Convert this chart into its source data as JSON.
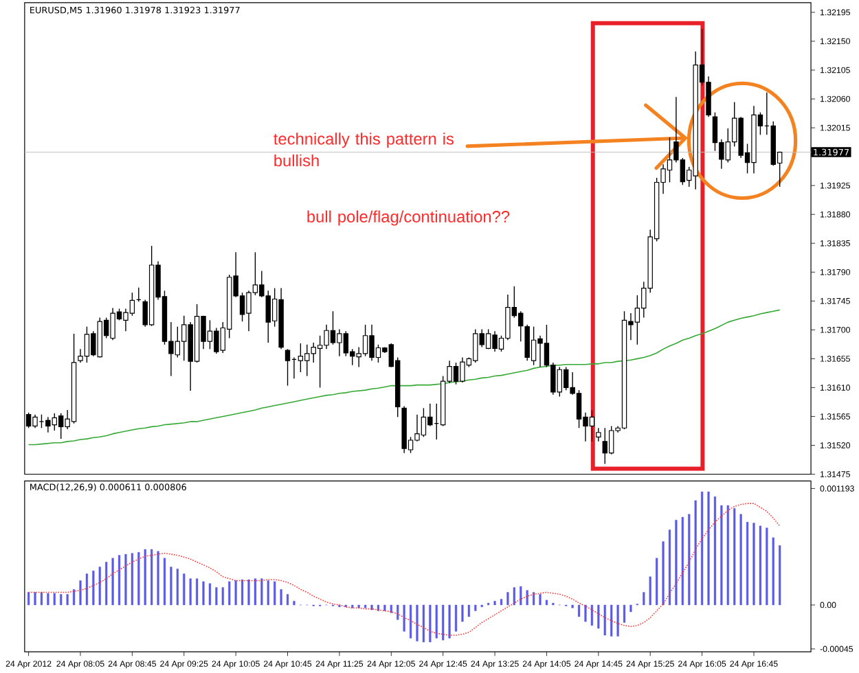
{
  "chart_data": [
    {
      "type": "candlestick",
      "title": "EURUSD,M5  1.31960 1.31978 1.31923 1.31977",
      "categories": [
        null,
        null,
        null,
        null,
        null,
        null,
        null,
        null,
        null,
        null,
        null,
        null,
        null,
        null,
        null,
        null,
        null,
        null,
        null,
        null,
        null,
        null,
        null,
        null,
        null,
        null,
        null,
        null,
        null,
        null,
        null,
        null,
        null,
        null,
        null,
        null,
        null,
        null,
        null,
        null,
        null,
        null,
        null,
        null,
        null,
        null,
        null,
        null,
        null,
        null,
        null,
        null,
        null,
        null,
        null,
        null,
        null,
        null,
        null,
        null,
        null,
        null,
        null,
        null,
        null,
        null,
        null,
        null,
        null,
        null,
        null,
        null,
        null,
        null,
        null,
        null,
        null,
        null,
        null,
        null,
        null,
        null,
        null,
        null,
        null,
        null,
        null,
        null,
        null,
        null,
        null,
        null,
        null,
        null,
        null,
        null,
        null,
        null,
        null,
        null,
        null,
        null,
        null,
        null,
        null,
        null,
        null,
        null,
        null,
        null,
        null,
        null,
        null,
        null,
        null,
        null,
        null
      ],
      "ohlc": [
        [
          1.31568,
          1.31571,
          1.31547,
          1.3155
        ],
        [
          1.3155,
          1.31568,
          1.31547,
          1.31564
        ],
        [
          1.31557,
          1.31568,
          1.31547,
          1.31557
        ],
        [
          1.31559,
          1.31564,
          1.3154,
          1.3155
        ],
        [
          1.31552,
          1.3157,
          1.31543,
          1.31563
        ],
        [
          1.31566,
          1.3157,
          1.3153,
          1.31549
        ],
        [
          1.31549,
          1.31575,
          1.31545,
          1.31561
        ],
        [
          1.31557,
          1.31694,
          1.31554,
          1.31649
        ],
        [
          1.31652,
          1.3167,
          1.31649,
          1.31659
        ],
        [
          1.31659,
          1.31705,
          1.31649,
          1.31693
        ],
        [
          1.31694,
          1.31698,
          1.31659,
          1.31661
        ],
        [
          1.31658,
          1.31719,
          1.31657,
          1.31713
        ],
        [
          1.31715,
          1.31719,
          1.31687,
          1.31691
        ],
        [
          1.31687,
          1.31734,
          1.31684,
          1.31726
        ],
        [
          1.31728,
          1.31733,
          1.31715,
          1.31717
        ],
        [
          1.31715,
          1.31733,
          1.31698,
          1.31727
        ],
        [
          1.31726,
          1.31758,
          1.31722,
          1.31746
        ],
        [
          1.31747,
          1.31766,
          1.31744,
          1.31747
        ],
        [
          1.31744,
          1.31747,
          1.31705,
          1.31708
        ],
        [
          1.31708,
          1.31831,
          1.31706,
          1.31801
        ],
        [
          1.31801,
          1.31807,
          1.31747,
          1.31751
        ],
        [
          1.31752,
          1.31761,
          1.31677,
          1.31682
        ],
        [
          1.31682,
          1.31712,
          1.31628,
          1.31663
        ],
        [
          1.31661,
          1.31705,
          1.31657,
          1.31682
        ],
        [
          1.31682,
          1.31722,
          1.31652,
          1.31708
        ],
        [
          1.31708,
          1.31712,
          1.31605,
          1.31651
        ],
        [
          1.31651,
          1.3174,
          1.31649,
          1.31721
        ],
        [
          1.31721,
          1.31722,
          1.3167,
          1.31682
        ],
        [
          1.31682,
          1.31715,
          1.3167,
          1.31698
        ],
        [
          1.31698,
          1.31703,
          1.31663,
          1.31666
        ],
        [
          1.31668,
          1.31712,
          1.31664,
          1.31703
        ],
        [
          1.31701,
          1.31786,
          1.31687,
          1.31782
        ],
        [
          1.31784,
          1.31821,
          1.31751,
          1.31753
        ],
        [
          1.31753,
          1.31758,
          1.31713,
          1.31724
        ],
        [
          1.31726,
          1.31761,
          1.31698,
          1.31758
        ],
        [
          1.31758,
          1.31821,
          1.31754,
          1.3177
        ],
        [
          1.3177,
          1.31792,
          1.31751,
          1.31753
        ],
        [
          1.31753,
          1.31761,
          1.3168,
          1.31712
        ],
        [
          1.31714,
          1.31765,
          1.31705,
          1.31748
        ],
        [
          1.31747,
          1.31765,
          1.3167,
          1.31673
        ],
        [
          1.31668,
          1.3167,
          1.31613,
          1.31652
        ],
        [
          1.31654,
          1.31657,
          1.31624,
          1.31654
        ],
        [
          1.31652,
          1.31679,
          1.31634,
          1.31659
        ],
        [
          1.31652,
          1.31677,
          1.31628,
          1.31663
        ],
        [
          1.31663,
          1.3168,
          1.31649,
          1.31673
        ],
        [
          1.31671,
          1.31691,
          1.3161,
          1.31676
        ],
        [
          1.31676,
          1.31708,
          1.3167,
          1.31699
        ],
        [
          1.31699,
          1.31729,
          1.31677,
          1.3168
        ],
        [
          1.3168,
          1.31701,
          1.31659,
          1.31694
        ],
        [
          1.31694,
          1.31698,
          1.31659,
          1.31664
        ],
        [
          1.31666,
          1.3167,
          1.31645,
          1.31659
        ],
        [
          1.31658,
          1.31673,
          1.31642,
          1.31663
        ],
        [
          1.31663,
          1.31708,
          1.31659,
          1.31691
        ],
        [
          1.31691,
          1.31708,
          1.31652,
          1.31657
        ],
        [
          1.31657,
          1.31677,
          1.31649,
          1.31672
        ],
        [
          1.31672,
          1.31673,
          1.31664,
          1.31666
        ],
        [
          1.31677,
          1.31679,
          1.31642,
          1.31643
        ],
        [
          1.31652,
          1.31657,
          1.31564,
          1.3158
        ],
        [
          1.31578,
          1.31581,
          1.31508,
          1.31515
        ],
        [
          1.31513,
          1.31533,
          1.31508,
          1.31528
        ],
        [
          1.31528,
          1.31568,
          1.31526,
          1.31538
        ],
        [
          1.31536,
          1.31578,
          1.31533,
          1.31564
        ],
        [
          1.31564,
          1.31585,
          1.3155,
          1.31552
        ],
        [
          1.31554,
          1.31585,
          1.31529,
          1.31554
        ],
        [
          1.31552,
          1.31628,
          1.3155,
          1.3162
        ],
        [
          1.3162,
          1.31652,
          1.31617,
          1.31643
        ],
        [
          1.31643,
          1.31649,
          1.31615,
          1.3162
        ],
        [
          1.3162,
          1.31657,
          1.31618,
          1.3165
        ],
        [
          1.31645,
          1.31657,
          1.31642,
          1.31655
        ],
        [
          1.31652,
          1.31701,
          1.31649,
          1.31694
        ],
        [
          1.31694,
          1.31701,
          1.31673,
          1.31677
        ],
        [
          1.31671,
          1.31701,
          1.3167,
          1.31694
        ],
        [
          1.31692,
          1.31698,
          1.31666,
          1.31671
        ],
        [
          1.3167,
          1.31691,
          1.31666,
          1.31687
        ],
        [
          1.31687,
          1.31755,
          1.31684,
          1.31735
        ],
        [
          1.31735,
          1.31768,
          1.31719,
          1.31722
        ],
        [
          1.31726,
          1.31729,
          1.31682,
          1.31706
        ],
        [
          1.31705,
          1.31708,
          1.31652,
          1.31657
        ],
        [
          1.31652,
          1.31705,
          1.31645,
          1.31684
        ],
        [
          1.31686,
          1.31691,
          1.31642,
          1.31679
        ],
        [
          1.31679,
          1.31708,
          1.31642,
          1.31645
        ],
        [
          1.31645,
          1.31649,
          1.31599,
          1.31603
        ],
        [
          1.31603,
          1.31642,
          1.31596,
          1.31638
        ],
        [
          1.31638,
          1.31642,
          1.31606,
          1.3161
        ],
        [
          1.3161,
          1.31634,
          1.31599,
          1.31601
        ],
        [
          1.31601,
          1.31606,
          1.31547,
          1.31561
        ],
        [
          1.31564,
          1.31571,
          1.31526,
          1.3155
        ],
        [
          1.3155,
          1.31575,
          1.31526,
          1.31564
        ],
        [
          1.31533,
          1.31547,
          1.31526,
          1.3154
        ],
        [
          1.31526,
          1.31547,
          1.31491,
          1.31508
        ],
        [
          1.31508,
          1.3155,
          1.31506,
          1.31543
        ],
        [
          1.31543,
          1.3155,
          1.3154,
          1.31547
        ],
        [
          1.31547,
          1.31729,
          1.31545,
          1.31715
        ],
        [
          1.31713,
          1.31726,
          1.31684,
          1.31708
        ],
        [
          1.31712,
          1.31754,
          1.31677,
          1.31734
        ],
        [
          1.31734,
          1.31775,
          1.31719,
          1.31765
        ],
        [
          1.31765,
          1.31856,
          1.31758,
          1.31845
        ],
        [
          1.31842,
          1.31937,
          1.31838,
          1.3193
        ],
        [
          1.3193,
          1.31958,
          1.31912,
          1.31951
        ],
        [
          1.31949,
          1.32,
          1.3193,
          1.31965
        ],
        [
          1.31993,
          1.32063,
          1.31961,
          1.31965
        ],
        [
          1.31965,
          1.31968,
          1.31926,
          1.31931
        ],
        [
          1.31933,
          1.31954,
          1.31923,
          1.31949
        ],
        [
          1.3194,
          1.32134,
          1.31919,
          1.32113
        ],
        [
          1.32113,
          1.32169,
          1.32081,
          1.32086
        ],
        [
          1.32086,
          1.32095,
          1.32032,
          1.32035
        ],
        [
          1.32032,
          1.32039,
          1.31979,
          1.31992
        ],
        [
          1.31992,
          1.31997,
          1.31951,
          1.31966
        ],
        [
          1.31965,
          1.32014,
          1.31961,
          1.31993
        ],
        [
          1.31993,
          1.32055,
          1.31986,
          1.3203
        ],
        [
          1.3203,
          1.32032,
          1.31968,
          1.31972
        ],
        [
          1.31976,
          1.3199,
          1.31944,
          1.31961
        ],
        [
          1.31961,
          1.32049,
          1.31944,
          1.32035
        ],
        [
          1.32035,
          1.32039,
          1.32004,
          1.32018
        ],
        [
          1.32018,
          1.3207,
          1.32004,
          1.32018
        ],
        [
          1.32018,
          1.32025,
          1.31956,
          1.31958
        ],
        [
          1.3196,
          1.31978,
          1.31923,
          1.31977
        ]
      ],
      "series": [
        {
          "type": "line",
          "color": "#33a833",
          "values": [
            1.31521,
            1.31521,
            1.31522,
            1.31523,
            1.31524,
            1.31524,
            1.31526,
            1.31527,
            1.31529,
            1.3153,
            1.31532,
            1.31533,
            1.31535,
            1.31538,
            1.3154,
            1.31542,
            1.31544,
            1.31546,
            1.31547,
            1.31549,
            1.3155,
            1.31552,
            1.31553,
            1.31554,
            1.31555,
            1.31557,
            1.31557,
            1.31559,
            1.31561,
            1.31563,
            1.31565,
            1.31567,
            1.31569,
            1.31571,
            1.31573,
            1.31575,
            1.31578,
            1.3158,
            1.31582,
            1.31584,
            1.31586,
            1.31588,
            1.3159,
            1.31592,
            1.31594,
            1.31596,
            1.31598,
            1.31599,
            1.31601,
            1.31602,
            1.31604,
            1.31605,
            1.31606,
            1.31608,
            1.31609,
            1.31611,
            1.31613,
            1.31613,
            1.31613,
            1.31613,
            1.31614,
            1.31614,
            1.31614,
            1.31615,
            1.31616,
            1.31618,
            1.31619,
            1.3162,
            1.31622,
            1.31623,
            1.31625,
            1.31626,
            1.31628,
            1.31629,
            1.31631,
            1.31633,
            1.31635,
            1.31637,
            1.3164,
            1.31642,
            1.31643,
            1.31645,
            1.31645,
            1.31646,
            1.31646,
            1.31646,
            1.31646,
            1.31647,
            1.31647,
            1.31649,
            1.31649,
            1.31651,
            1.31652,
            1.31653,
            1.31655,
            1.31657,
            1.3166,
            1.31664,
            1.3167,
            1.31675,
            1.31679,
            1.31684,
            1.31687,
            1.31691,
            1.31694,
            1.31698,
            1.31702,
            1.31707,
            1.31712,
            1.31715,
            1.31718,
            1.3172,
            1.31722,
            1.31725,
            1.31727,
            1.31729,
            1.31731
          ]
        }
      ],
      "ylim": [
        1.31475,
        1.3221
      ],
      "yticks": [
        1.32195,
        {
          "value": 1.3215,
          "label": "1.32150"
        },
        1.32105,
        {
          "value": 1.3206,
          "label": "1.32060"
        },
        1.32015,
        1.31925,
        {
          "value": 1.3188,
          "label": "1.31880"
        },
        1.31835,
        {
          "value": 1.3179,
          "label": "1.31790"
        },
        1.31745,
        {
          "value": 1.317,
          "label": "1.31700"
        },
        1.31655,
        {
          "value": 1.3161,
          "label": "1.31610"
        },
        1.31565,
        {
          "value": 1.3152,
          "label": "1.31520"
        },
        1.31475
      ],
      "ref_lines": [
        {
          "axis": "y",
          "value": 1.31977,
          "label": "1.31977",
          "color": "#c0c0c0"
        }
      ],
      "annotations": [
        "technically this pattern is bullish",
        "bull pole/flag/continuation??"
      ],
      "tick_labels": "y"
    },
    {
      "type": "bar",
      "title": "MACD(12,26,9) 0.000611 0.000806",
      "categories": [
        "24 Apr 2012",
        null,
        null,
        null,
        null,
        null,
        null,
        null,
        "24 Apr 08:05",
        null,
        null,
        null,
        null,
        null,
        null,
        null,
        "24 Apr 08:45",
        null,
        null,
        null,
        null,
        null,
        null,
        null,
        "24 Apr 09:25",
        null,
        null,
        null,
        null,
        null,
        null,
        null,
        "24 Apr 10:05",
        null,
        null,
        null,
        null,
        null,
        null,
        null,
        "24 Apr 10:45",
        null,
        null,
        null,
        null,
        null,
        null,
        null,
        "24 Apr 11:25",
        null,
        null,
        null,
        null,
        null,
        null,
        null,
        "24 Apr 12:05",
        null,
        null,
        null,
        null,
        null,
        null,
        null,
        "24 Apr 12:45",
        null,
        null,
        null,
        null,
        null,
        null,
        null,
        "24 Apr 13:25",
        null,
        null,
        null,
        null,
        null,
        null,
        null,
        "24 Apr 14:05",
        null,
        null,
        null,
        null,
        null,
        null,
        null,
        "24 Apr 14:45",
        null,
        null,
        null,
        null,
        null,
        null,
        null,
        "24 Apr 15:25",
        null,
        null,
        null,
        null,
        null,
        null,
        null,
        "24 Apr 16:05",
        null,
        null,
        null,
        null,
        null,
        null,
        null,
        "24 Apr 16:45",
        null,
        null,
        null,
        null
      ],
      "series": [
        {
          "type": "bar",
          "color": "#5a5ae6",
          "values": [
            0.00013,
            0.00013,
            0.00013,
            0.00012,
            0.00012,
            0.00011,
            0.00011,
            0.00016,
            0.00025,
            0.00032,
            0.00035,
            0.00039,
            0.00044,
            0.00048,
            0.00051,
            0.00052,
            0.00053,
            0.00054,
            0.00057,
            0.00057,
            0.00055,
            0.00048,
            0.00039,
            0.00037,
            0.00032,
            0.00027,
            0.00027,
            0.00024,
            0.00022,
            0.00018,
            0.00018,
            0.00024,
            0.00025,
            0.00026,
            0.00026,
            0.00027,
            0.00027,
            0.00025,
            0.00024,
            0.00016,
            0.00011,
            4e-05,
            0,
            0,
            -1e-05,
            -1e-05,
            0,
            -1e-05,
            -2e-05,
            -2e-05,
            -3e-05,
            -3e-05,
            -3e-05,
            -5e-05,
            -6e-05,
            -6e-05,
            -8e-05,
            -0.00015,
            -0.00027,
            -0.00034,
            -0.00037,
            -0.00038,
            -0.00038,
            -0.00034,
            -0.00036,
            -0.00034,
            -0.00027,
            -0.00017,
            -0.00012,
            -6e-05,
            -2e-05,
            2e-05,
            4e-05,
            6e-05,
            0.00013,
            0.00018,
            0.00019,
            0.00015,
            0.00013,
            0.00011,
            5e-05,
            2e-05,
            0,
            -1e-05,
            -3e-05,
            -0.00012,
            -0.00017,
            -0.00021,
            -0.00024,
            -0.00031,
            -0.00032,
            -0.00032,
            -0.00018,
            -7e-05,
            1e-05,
            0.00013,
            0.00029,
            0.00048,
            0.00065,
            0.00077,
            0.00087,
            0.0009,
            0.00093,
            0.00107,
            0.00116,
            0.00116,
            0.00111,
            0.00102,
            0.00102,
            0.00099,
            0.00093,
            0.00085,
            0.00084,
            0.00081,
            0.00079,
            0.00069,
            0.00061
          ]
        },
        {
          "type": "line",
          "color": "#ff3030",
          "line_style": "dotted",
          "values": [
            0.00013,
            0.00013,
            0.00013,
            0.00013,
            0.00013,
            0.00013,
            0.00013,
            0.00014,
            0.00015,
            0.00017,
            0.0002,
            0.00023,
            0.00027,
            0.00032,
            0.00036,
            0.0004,
            0.00044,
            0.00047,
            0.0005,
            0.00051,
            0.00052,
            0.00053,
            0.00052,
            0.00051,
            0.00049,
            0.00047,
            0.00044,
            0.00041,
            0.00038,
            0.00034,
            0.00029,
            0.00027,
            0.00025,
            0.00025,
            0.00025,
            0.00025,
            0.00025,
            0.00026,
            0.00026,
            0.00025,
            0.00023,
            0.0002,
            0.00016,
            0.00013,
            9e-05,
            6e-05,
            3e-05,
            1e-05,
            0,
            -2e-05,
            -3e-05,
            -3e-05,
            -4e-05,
            -4e-05,
            -5e-05,
            -6e-05,
            -7e-05,
            -9e-05,
            -0.00013,
            -0.00016,
            -0.0002,
            -0.00023,
            -0.00027,
            -0.00029,
            -0.0003,
            -0.00031,
            -0.00031,
            -0.0003,
            -0.00028,
            -0.00023,
            -0.00018,
            -0.00014,
            -0.0001,
            -6e-05,
            -2e-05,
            2e-05,
            6e-05,
            9e-05,
            0.00011,
            0.00012,
            0.00013,
            0.00012,
            0.00011,
            9e-05,
            6e-05,
            2e-05,
            -1e-05,
            -5e-05,
            -9e-05,
            -0.00013,
            -0.00016,
            -0.00019,
            -0.00021,
            -0.00022,
            -0.00021,
            -0.00018,
            -0.00013,
            -6e-05,
            1e-05,
            0.00012,
            0.00022,
            0.00033,
            0.00044,
            0.00057,
            0.00068,
            0.00077,
            0.00085,
            0.00091,
            0.00097,
            0.00101,
            0.00103,
            0.00104,
            0.00104,
            0.001,
            0.00096,
            0.00089,
            0.00081
          ]
        }
      ],
      "ylim": [
        -0.00048,
        0.00127
      ],
      "yticks": [
        0.001193,
        {
          "value": 0,
          "label": "0.00"
        },
        -0.00045
      ]
    }
  ]
}
